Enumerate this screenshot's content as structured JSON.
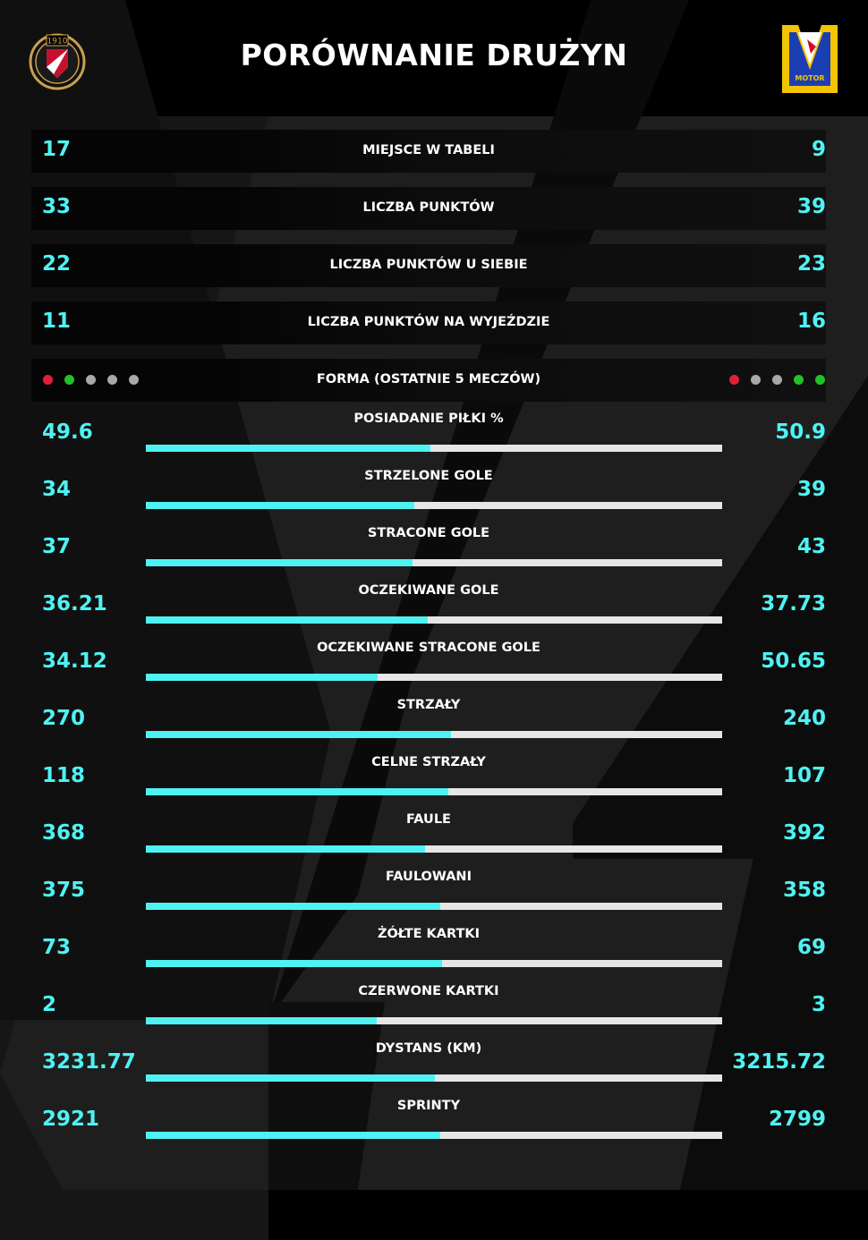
{
  "title": "PORÓWNANIE DRUŻYN",
  "home_logo": {
    "icon": "widzew-crest",
    "year_text": "1910"
  },
  "away_logo": {
    "icon": "motor-crest",
    "text": "MOTOR"
  },
  "colors": {
    "accent": "#4ff2f2",
    "bar_track": "#e6e6e6",
    "win": "#22c12a",
    "draw": "#a8a8a8",
    "loss": "#e0203a"
  },
  "chart_data": {
    "type": "bar",
    "title": "PORÓWNANIE DRUŻYN",
    "rows": [
      {
        "label": "MIEJSCE W TABELI",
        "home": "17",
        "away": "9"
      },
      {
        "label": "LICZBA PUNKTÓW",
        "home": "33",
        "away": "39"
      },
      {
        "label": "LICZBA PUNKTÓW U SIEBIE",
        "home": "22",
        "away": "23"
      },
      {
        "label": "LICZBA PUNKTÓW NA WYJEŹDZIE",
        "home": "11",
        "away": "16"
      }
    ],
    "form": {
      "label": "FORMA (OSTATNIE 5 MECZÓW)",
      "home": [
        "loss",
        "win",
        "draw",
        "draw",
        "draw"
      ],
      "away": [
        "loss",
        "draw",
        "draw",
        "win",
        "win"
      ]
    },
    "categories": [
      "POSIADANIE PIŁKI %",
      "STRZELONE GOLE",
      "STRACONE GOLE",
      "OCZEKIWANE GOLE",
      "OCZEKIWANE STRACONE GOLE",
      "STRZAŁY",
      "CELNE STRZAŁY",
      "FAULE",
      "FAULOWANI",
      "ŻÓŁTE KARTKI",
      "CZERWONE KARTKI",
      "DYSTANS (KM)",
      "SPRINTY"
    ],
    "home_labels": [
      "49.6",
      "34",
      "37",
      "36.21",
      "34.12",
      "270",
      "118",
      "368",
      "375",
      "73",
      "2",
      "3231.77",
      "2921"
    ],
    "away_labels": [
      "50.9",
      "39",
      "43",
      "37.73",
      "50.65",
      "240",
      "107",
      "392",
      "358",
      "69",
      "3",
      "3215.72",
      "2799"
    ],
    "series": [
      {
        "values": [
          49.6,
          34,
          37,
          36.21,
          34.12,
          270,
          118,
          368,
          375,
          73,
          2,
          3231.77,
          2921
        ]
      },
      {
        "values": [
          50.9,
          39,
          43,
          37.73,
          50.65,
          240,
          107,
          392,
          358,
          69,
          3,
          3215.72,
          2799
        ]
      }
    ]
  }
}
